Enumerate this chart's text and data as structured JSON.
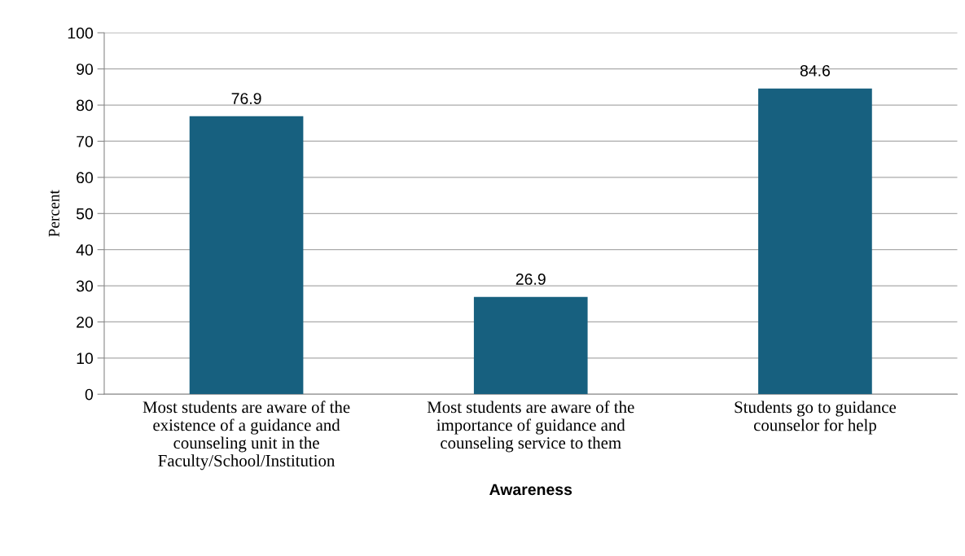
{
  "chart_data": {
    "type": "bar",
    "xlabel": "Awareness",
    "ylabel": "Percent",
    "categories": [
      "Most students are aware of the\nexistence of a guidance and\ncounseling unit in the\nFaculty/School/Institution",
      "Most students are aware of the\nimportance of guidance and\ncounseling service to them",
      "Students go to guidance\ncounselor for help"
    ],
    "values": [
      76.9,
      26.9,
      84.6
    ],
    "color": "#17607f",
    "ylim": [
      0,
      100
    ],
    "yticks": [
      0,
      10,
      20,
      30,
      40,
      50,
      60,
      70,
      80,
      90,
      100
    ],
    "grid": "y",
    "data_labels": true
  }
}
